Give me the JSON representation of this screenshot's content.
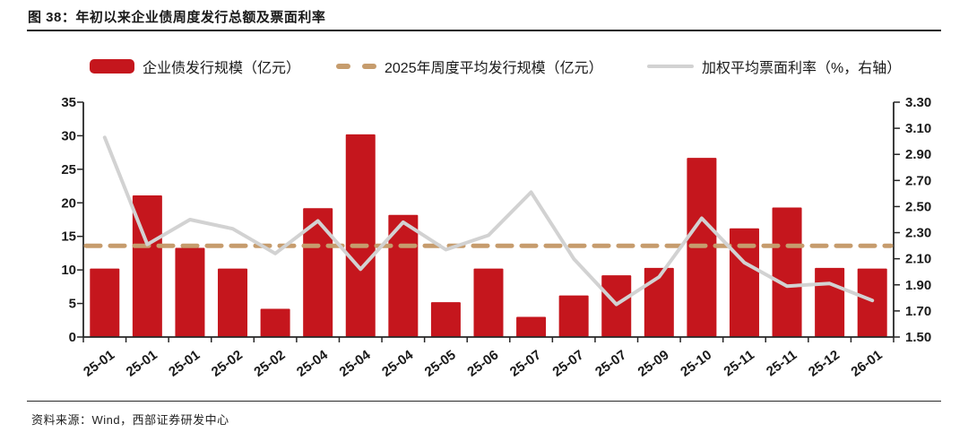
{
  "figure": {
    "title": "图 38：年初以来企业债周度发行总额及票面利率",
    "source": "资料来源：Wind，西部证券研发中心"
  },
  "legend": [
    {
      "label": "企业债发行规模（亿元）",
      "swatch": "bar",
      "color": "#c5161d"
    },
    {
      "label": "2025年周度平均发行规模（亿元）",
      "swatch": "dashed-line",
      "color": "#c69c6d"
    },
    {
      "label": "加权平均票面利率（%，右轴）",
      "swatch": "line",
      "color": "#d2d2d2"
    }
  ],
  "chart_data": {
    "type": "bar",
    "title": "年初以来企业债周度发行总额及票面利率",
    "categories": [
      "25-01",
      "25-01",
      "25-01",
      "25-02",
      "25-02",
      "25-04",
      "25-04",
      "25-04",
      "25-05",
      "25-06",
      "25-07",
      "25-07",
      "25-07",
      "25-09",
      "25-10",
      "25-11",
      "25-11",
      "25-12",
      "26-01"
    ],
    "series": [
      {
        "name": "企业债发行规模（亿元）",
        "type": "bar",
        "axis": "left",
        "color": "#c5161d",
        "values": [
          10.2,
          21.1,
          13.3,
          10.2,
          4.2,
          19.2,
          30.2,
          18.2,
          5.2,
          10.2,
          3.0,
          6.2,
          9.2,
          10.3,
          26.7,
          16.2,
          19.3,
          10.3,
          10.2
        ]
      },
      {
        "name": "2025年周度平均发行规模（亿元）",
        "type": "dashed-average-line",
        "axis": "left",
        "color": "#c69c6d",
        "value": 13.6
      },
      {
        "name": "加权平均票面利率（%，右轴）",
        "type": "line",
        "axis": "right",
        "color": "#d2d2d2",
        "values": [
          3.03,
          2.21,
          2.4,
          2.33,
          2.14,
          2.39,
          2.02,
          2.38,
          2.17,
          2.28,
          2.61,
          2.1,
          1.75,
          1.96,
          2.41,
          2.07,
          1.89,
          1.91,
          1.78
        ]
      }
    ],
    "left_axis": {
      "min": 0,
      "max": 35,
      "step": 5,
      "ticks": [
        "0",
        "5",
        "10",
        "15",
        "20",
        "25",
        "30",
        "35"
      ]
    },
    "right_axis": {
      "min": 1.5,
      "max": 3.3,
      "step": 0.2,
      "ticks": [
        "1.50",
        "1.70",
        "1.90",
        "2.10",
        "2.30",
        "2.50",
        "2.70",
        "2.90",
        "3.10",
        "3.30"
      ]
    },
    "grid": false,
    "legend_position": "top",
    "axis_color": "#262626",
    "tick_label_color": "#1a1a1a"
  }
}
